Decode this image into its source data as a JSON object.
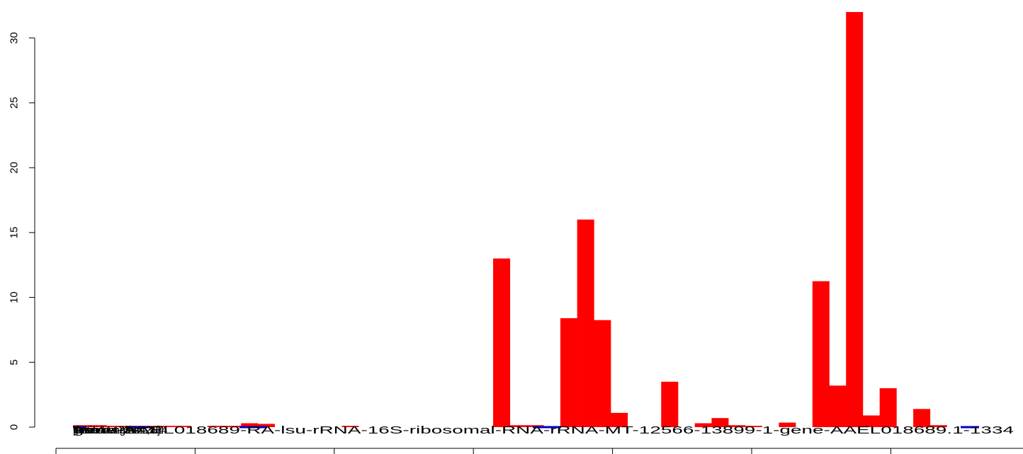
{
  "chart_data": {
    "type": "bar",
    "title": "",
    "xlabel": "",
    "ylabel": "",
    "ylim": [
      0,
      32
    ],
    "yticks": [
      0,
      5,
      10,
      15,
      20,
      25,
      30
    ],
    "xticks_count": 7,
    "bar_color": "#FF0000",
    "line_color": "#0000CD",
    "bin_count": 54,
    "values": [
      0.15,
      0.15,
      0.1,
      0.1,
      0.1,
      0.1,
      0.1,
      0.0,
      0.1,
      0.1,
      0.3,
      0.25,
      0.0,
      0.0,
      0.0,
      0.0,
      0.1,
      0.0,
      0.0,
      0.0,
      0.0,
      0.0,
      0.0,
      0.0,
      0.0,
      13.0,
      0.15,
      0.15,
      0.0,
      8.4,
      16.0,
      8.25,
      1.1,
      0.0,
      0.0,
      3.5,
      0.0,
      0.3,
      0.7,
      0.15,
      0.1,
      0.0,
      0.35,
      0.0,
      11.25,
      3.2,
      32.0,
      0.9,
      3.0,
      0.0,
      1.4,
      0.15,
      0.0,
      0.0
    ],
    "overlapping_labels": [
      "\\[Window-size=25]",
      "position-12566",
      "position",
      "Gene Length=1334",
      "Total AA=73",
      "Gene Length=1,334",
      "gene-AAEL018689-RA-lsu-rRNA-16S-ribosomal-RNA-rRNA-MT-12566-13899-1-gene-AAEL018689.1-1334"
    ]
  }
}
